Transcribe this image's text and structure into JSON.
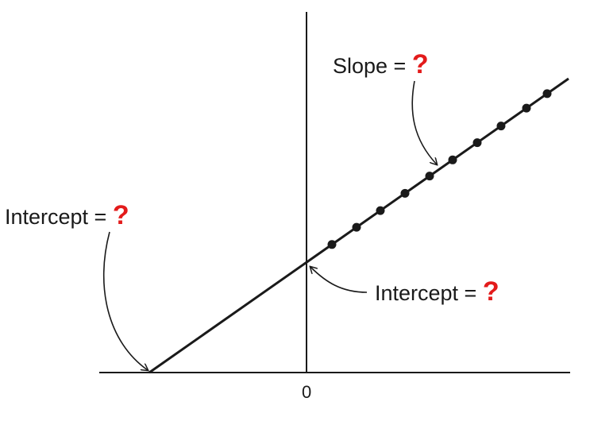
{
  "labels": {
    "slope": {
      "text": "Slope =",
      "mark": "?"
    },
    "intercept_left": {
      "text": "Intercept =",
      "mark": "?"
    },
    "intercept_right": {
      "text": "Intercept =",
      "mark": "?"
    }
  },
  "axis": {
    "origin_label": "0"
  },
  "colors": {
    "line": "#1a1a1a",
    "question_mark": "#e31b1b"
  },
  "points_count": 10
}
